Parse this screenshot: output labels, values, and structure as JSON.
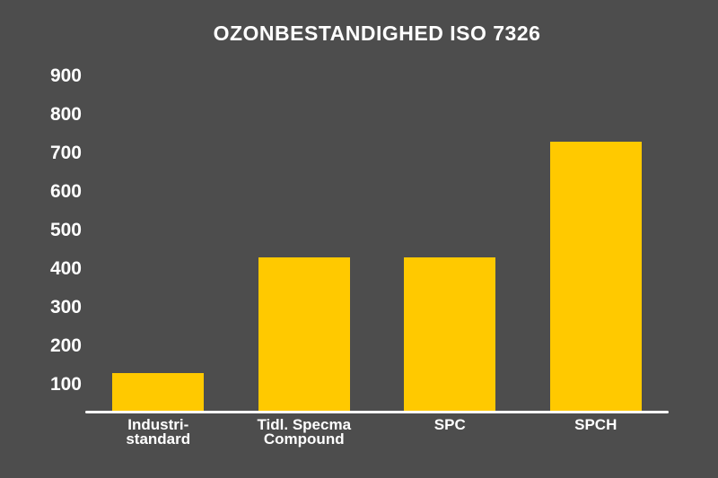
{
  "title": "OZONBESTANDIGHED ISO 7326",
  "colors": {
    "background": "#4d4d4d",
    "bar": "#ffc900",
    "text": "#ffffff",
    "axis_line": "#ffffff"
  },
  "chart_data": {
    "type": "bar",
    "title": "OZONBESTANDIGHED ISO 7326",
    "categories": [
      "Industri-standard",
      "Tidl. Specma Compound",
      "SPC",
      "SPCH"
    ],
    "categories_display": [
      [
        "Industri-",
        "standard"
      ],
      [
        "Tidl. Specma",
        "Compound"
      ],
      [
        "SPC"
      ],
      [
        "SPCH"
      ]
    ],
    "values": [
      130,
      430,
      430,
      730
    ],
    "y_ticks": [
      900,
      800,
      700,
      600,
      500,
      400,
      300,
      200,
      100
    ],
    "xlabel": "",
    "ylabel": "",
    "ylim": [
      30,
      950
    ],
    "grid": false,
    "legend": false,
    "bar_color": "#ffc900",
    "background_color": "#4d4d4d"
  }
}
